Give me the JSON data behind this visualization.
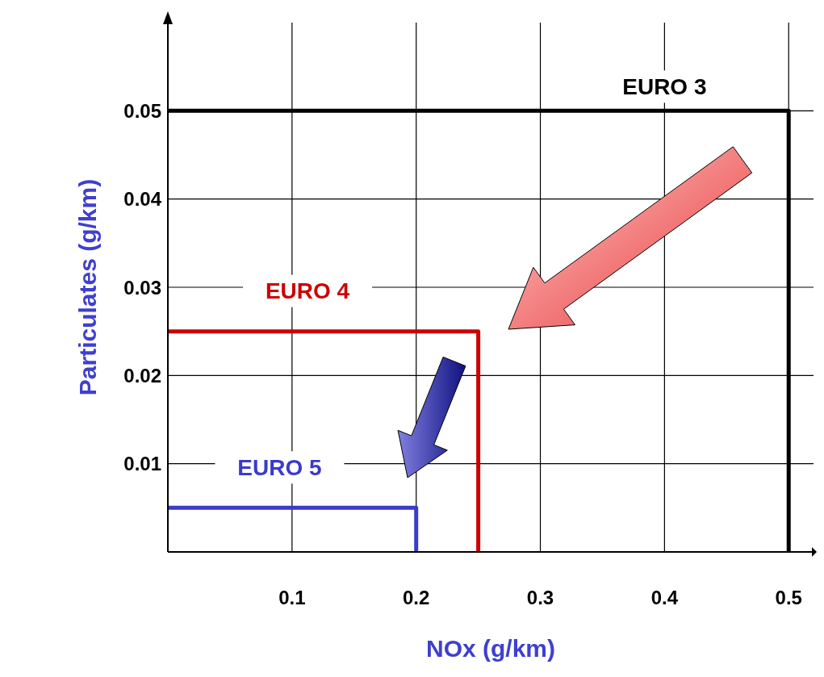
{
  "chart_data": {
    "type": "line",
    "xlabel": "NOx (g/km)",
    "ylabel": "Particulates (g/km)",
    "xlim": [
      0,
      0.52
    ],
    "ylim": [
      0,
      0.06
    ],
    "xticks": [
      0.1,
      0.2,
      0.3,
      0.4,
      0.5
    ],
    "yticks": [
      0.01,
      0.02,
      0.03,
      0.04,
      0.05
    ],
    "grid": true,
    "series": [
      {
        "name": "EURO 3",
        "color": "#000000",
        "x": [
          0,
          0.5,
          0.5
        ],
        "values": [
          0.05,
          0.05,
          0
        ]
      },
      {
        "name": "EURO 4",
        "color": "#cc0000",
        "x": [
          0,
          0.25,
          0.25
        ],
        "values": [
          0.025,
          0.025,
          0
        ]
      },
      {
        "name": "EURO 5",
        "color": "#3a3acc",
        "x": [
          0,
          0.2,
          0.2
        ],
        "values": [
          0.005,
          0.005,
          0
        ]
      }
    ]
  }
}
